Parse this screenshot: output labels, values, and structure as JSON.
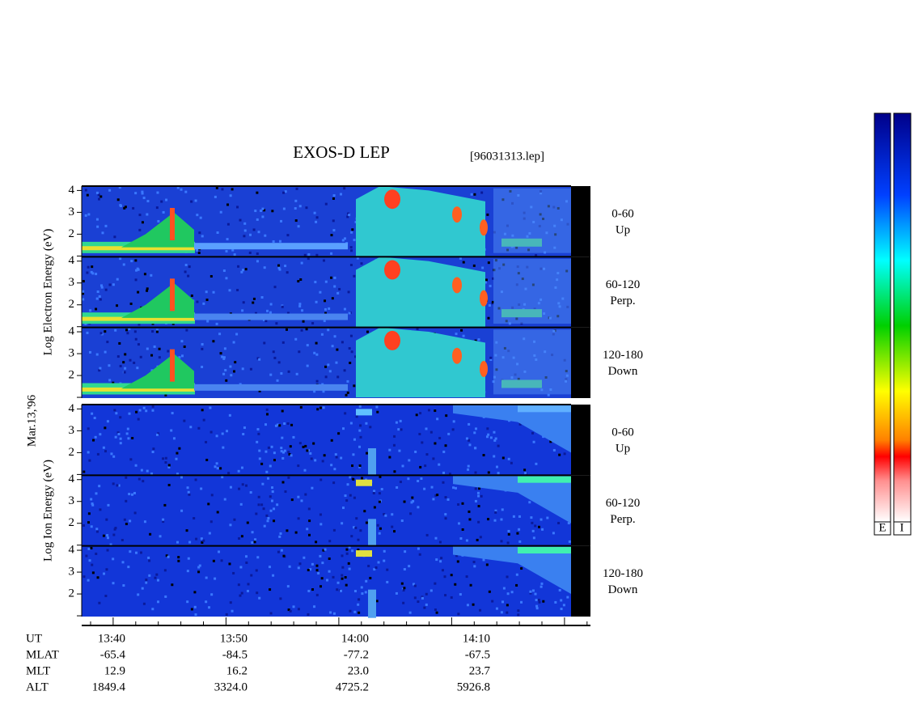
{
  "title": "EXOS-D LEP",
  "file": "[96031313.lep]",
  "date_label": "Mar.13,'96",
  "blocks": [
    {
      "axis_label": "Log Electron Energy (eV)",
      "panels": [
        {
          "angle": "0-60",
          "direction": "Up"
        },
        {
          "angle": "60-120",
          "direction": "Perp."
        },
        {
          "angle": "120-180",
          "direction": "Down"
        }
      ]
    },
    {
      "axis_label": "Log Ion Energy (eV)",
      "panels": [
        {
          "angle": "0-60",
          "direction": "Up"
        },
        {
          "angle": "60-120",
          "direction": "Perp."
        },
        {
          "angle": "120-180",
          "direction": "Down"
        }
      ]
    }
  ],
  "energy_ticks": [
    4,
    3,
    2
  ],
  "ephemeris": [
    {
      "name": "UT",
      "values": [
        "13:40",
        "13:50",
        "14:00",
        "14:10"
      ]
    },
    {
      "name": "MLAT",
      "values": [
        "-65.4",
        "-84.5",
        "-77.2",
        "-67.5"
      ]
    },
    {
      "name": "MLT",
      "values": [
        "12.9",
        "16.2",
        "23.0",
        "23.7"
      ]
    },
    {
      "name": "ALT",
      "values": [
        "1849.4",
        "3324.0",
        "4725.2",
        "5926.8"
      ]
    }
  ],
  "colorbars": [
    "E",
    "I"
  ]
}
